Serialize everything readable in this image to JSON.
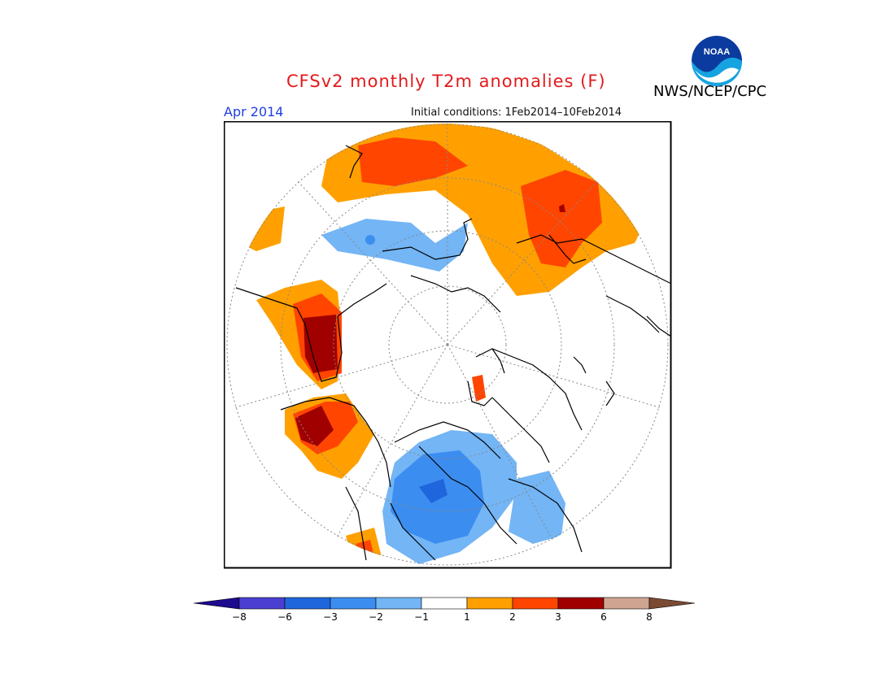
{
  "header": {
    "title": "CFSv2 monthly T2m anomalies (F)",
    "month": "Apr 2014",
    "initial_conditions": "Initial conditions: 1Feb2014–10Feb2014",
    "agency": "NWS/NCEP/CPC",
    "logo_text": "NOAA"
  },
  "map": {
    "projection": "north-polar-stereographic",
    "background_color": "#ffffff",
    "coastline_color": "#000000",
    "graticule": "dotted"
  },
  "colorbar": {
    "labels": [
      "−8",
      "−6",
      "−3",
      "−2",
      "−1",
      "1",
      "2",
      "3",
      "6",
      "8"
    ],
    "colors": [
      "#1c0a8f",
      "#4a3fd0",
      "#1f66dd",
      "#3c8df0",
      "#73b5f5",
      "#ffffff",
      "#ffa000",
      "#ff4500",
      "#a00000",
      "#cfa490",
      "#7a4a33"
    ]
  }
}
